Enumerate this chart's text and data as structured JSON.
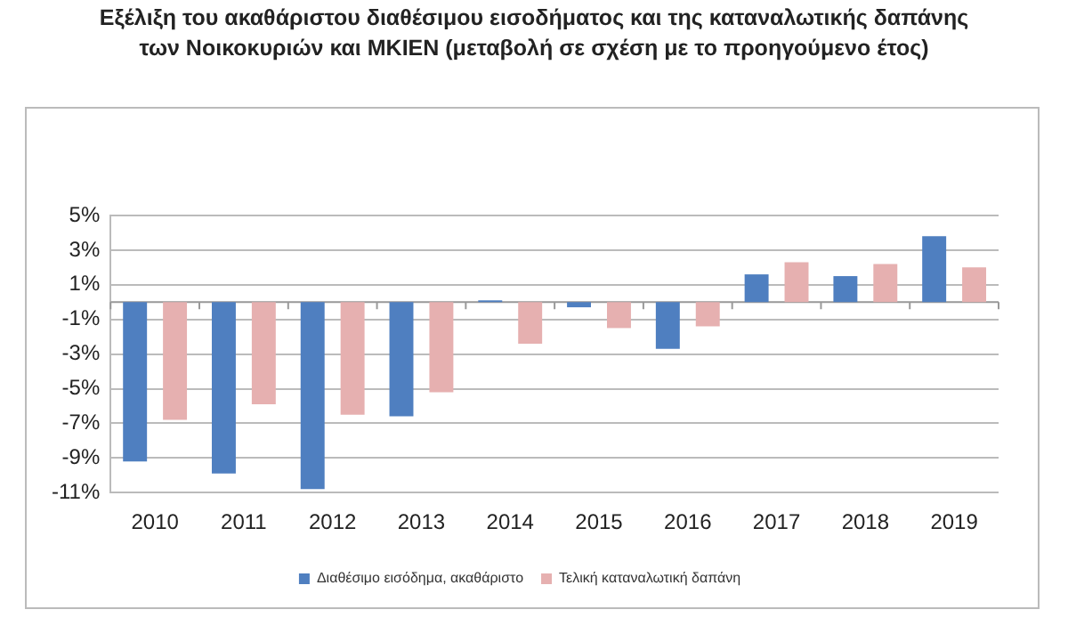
{
  "chart_data": {
    "type": "bar",
    "title": [
      "Εξέλιξη του ακαθάριστου διαθέσιμου εισοδήματος και της καταναλωτικής δαπάνης",
      "των Νοικοκυριών και ΜΚΙΕΝ (μεταβολή σε σχέση με το προηγούμενο έτος)"
    ],
    "categories": [
      "2010",
      "2011",
      "2012",
      "2013",
      "2014",
      "2015",
      "2016",
      "2017",
      "2018",
      "2019"
    ],
    "series": [
      {
        "name": "Διαθέσιμο εισόδημα, ακαθάριστο",
        "color": "#4f7fc0",
        "values": [
          -9.2,
          -9.9,
          -10.8,
          -6.6,
          0.1,
          -0.3,
          -2.7,
          1.6,
          1.5,
          3.8
        ]
      },
      {
        "name": "Τελική καταναλωτική δαπάνη",
        "color": "#e6b0b0",
        "values": [
          -6.8,
          -5.9,
          -6.5,
          -5.2,
          -2.4,
          -1.5,
          -1.4,
          2.3,
          2.2,
          2.0
        ]
      }
    ],
    "ylim": [
      -11,
      5
    ],
    "yticks": [
      {
        "value": -11,
        "label": "-11%"
      },
      {
        "value": -9,
        "label": "-9%"
      },
      {
        "value": -7,
        "label": "-7%"
      },
      {
        "value": -5,
        "label": "-5%"
      },
      {
        "value": -3,
        "label": "-3%"
      },
      {
        "value": -1,
        "label": "-1%"
      },
      {
        "value": 1,
        "label": "1%"
      },
      {
        "value": 3,
        "label": "3%"
      },
      {
        "value": 5,
        "label": "5%"
      }
    ],
    "grid": "y",
    "legend": "bottom"
  }
}
